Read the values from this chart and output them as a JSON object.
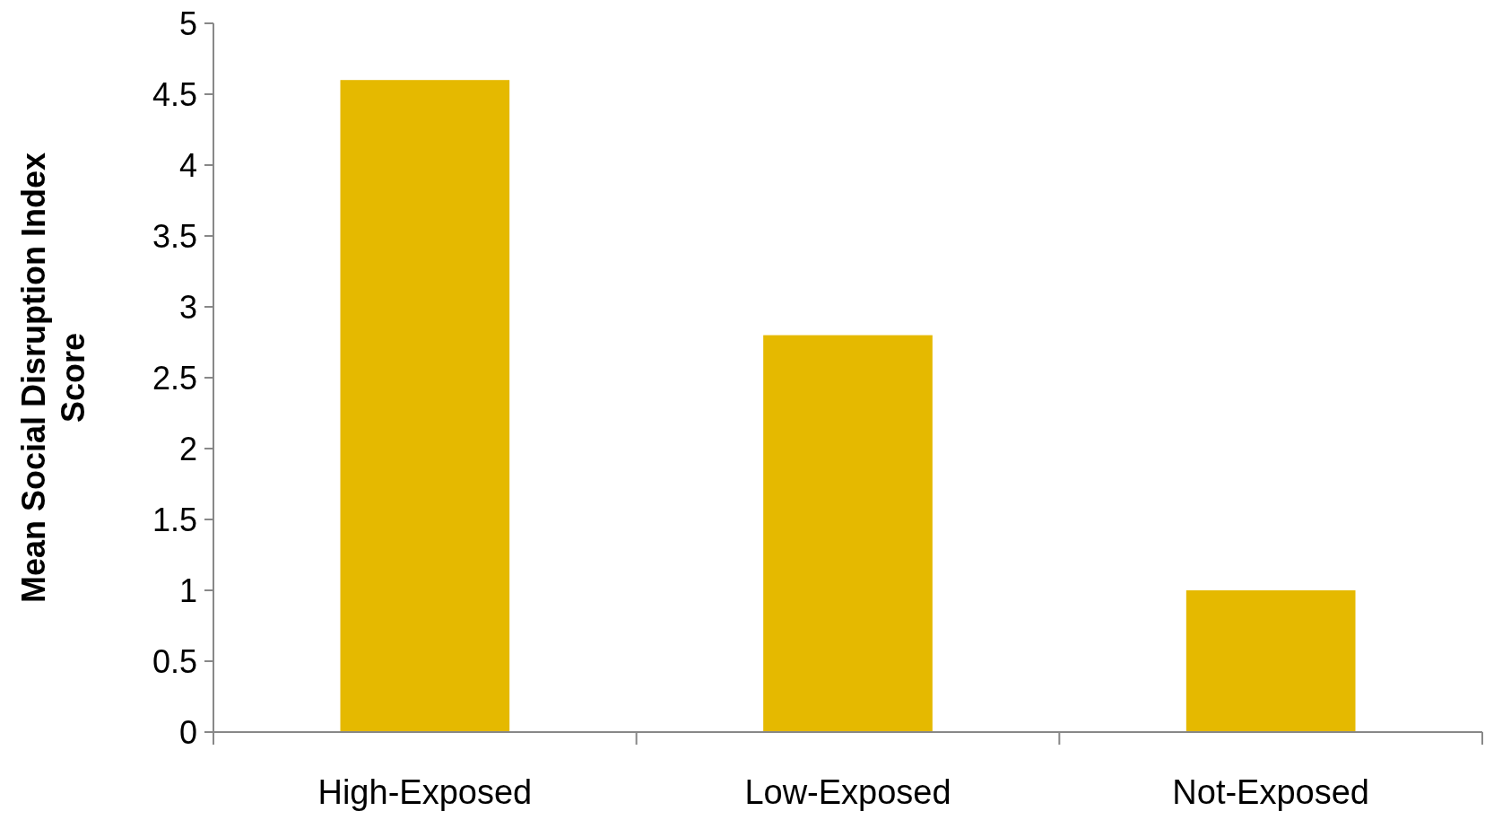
{
  "chart_data": {
    "type": "bar",
    "ylabel": "Mean Social Disruption Index Score",
    "categories": [
      "High-Exposed",
      "Low-Exposed",
      "Not-Exposed"
    ],
    "values": [
      4.6,
      2.8,
      1.0
    ],
    "color": "#e5b900",
    "ylim": [
      0,
      5
    ],
    "yticks": [
      0,
      0.5,
      1,
      1.5,
      2,
      2.5,
      3,
      3.5,
      4,
      4.5,
      5
    ],
    "grid": false
  }
}
